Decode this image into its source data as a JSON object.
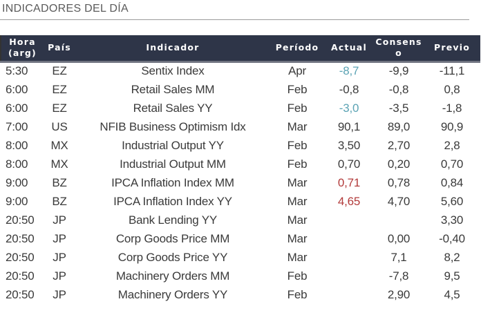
{
  "title": "INDICADORES DEL DÍA",
  "colors": {
    "header_bg": "#2e3548",
    "negative_teal": "#5ba3b4",
    "highlight_red": "#b23a3a"
  },
  "headers": {
    "hora_line1": "Hora",
    "hora_line2": "(arg)",
    "pais": "País",
    "indicador": "Indicador",
    "periodo": "Período",
    "actual": "Actual",
    "consenso_line1": "Consens",
    "consenso_line2": "o",
    "previo": "Previo"
  },
  "rows": [
    {
      "hora": "5:30",
      "pais": "EZ",
      "indicador": "Sentix Index",
      "periodo": "Apr",
      "actual": "-8,7",
      "actual_color": "teal",
      "consenso": "-9,9",
      "previo": "-11,1"
    },
    {
      "hora": "6:00",
      "pais": "EZ",
      "indicador": "Retail Sales MM",
      "periodo": "Feb",
      "actual": "-0,8",
      "actual_color": "",
      "consenso": "-0,8",
      "previo": "0,8"
    },
    {
      "hora": "6:00",
      "pais": "EZ",
      "indicador": "Retail Sales YY",
      "periodo": "Feb",
      "actual": "-3,0",
      "actual_color": "teal",
      "consenso": "-3,5",
      "previo": "-1,8"
    },
    {
      "hora": "7:00",
      "pais": "US",
      "indicador": "NFIB Business Optimism Idx",
      "periodo": "Mar",
      "actual": "90,1",
      "actual_color": "",
      "consenso": "89,0",
      "previo": "90,9"
    },
    {
      "hora": "8:00",
      "pais": "MX",
      "indicador": "Industrial Output YY",
      "periodo": "Feb",
      "actual": "3,50",
      "actual_color": "",
      "consenso": "2,70",
      "previo": "2,8"
    },
    {
      "hora": "8:00",
      "pais": "MX",
      "indicador": "Industrial Output MM",
      "periodo": "Feb",
      "actual": "0,70",
      "actual_color": "",
      "consenso": "0,20",
      "previo": "0,70"
    },
    {
      "hora": "9:00",
      "pais": "BZ",
      "indicador": "IPCA Inflation Index MM",
      "periodo": "Mar",
      "actual": "0,71",
      "actual_color": "red",
      "consenso": "0,78",
      "previo": "0,84"
    },
    {
      "hora": "9:00",
      "pais": "BZ",
      "indicador": "IPCA Inflation Index YY",
      "periodo": "Mar",
      "actual": "4,65",
      "actual_color": "red",
      "consenso": "4,70",
      "previo": "5,60"
    },
    {
      "hora": "20:50",
      "pais": "JP",
      "indicador": "Bank Lending YY",
      "periodo": "Mar",
      "actual": "",
      "actual_color": "",
      "consenso": "",
      "previo": "3,30"
    },
    {
      "hora": "20:50",
      "pais": "JP",
      "indicador": "Corp Goods Price MM",
      "periodo": "Mar",
      "actual": "",
      "actual_color": "",
      "consenso": "0,00",
      "previo": "-0,40"
    },
    {
      "hora": "20:50",
      "pais": "JP",
      "indicador": "Corp Goods Price YY",
      "periodo": "Mar",
      "actual": "",
      "actual_color": "",
      "consenso": "7,1",
      "previo": "8,2"
    },
    {
      "hora": "20:50",
      "pais": "JP",
      "indicador": "Machinery Orders MM",
      "periodo": "Feb",
      "actual": "",
      "actual_color": "",
      "consenso": "-7,8",
      "previo": "9,5"
    },
    {
      "hora": "20:50",
      "pais": "JP",
      "indicador": "Machinery Orders YY",
      "periodo": "Feb",
      "actual": "",
      "actual_color": "",
      "consenso": "2,90",
      "previo": "4,5"
    }
  ]
}
